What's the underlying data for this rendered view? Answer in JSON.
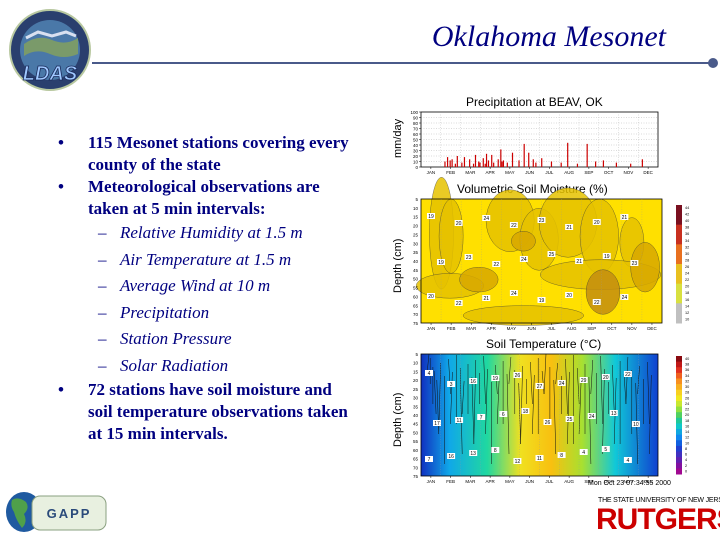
{
  "slide": {
    "title": "Oklahoma Mesonet",
    "ldas_logo_text": "LDAS",
    "gapp_logo_text": "GAPP",
    "rutgers_top_text": "THE STATE UNIVERSITY OF NEW JERSEY",
    "rutgers_word": "RUTGERS",
    "bullets": [
      {
        "text": "115 Mesonet stations covering every county of the state",
        "sub": []
      },
      {
        "text": "Meteorological observations are taken at 5 min intervals:",
        "sub": [
          "Relative Humidity at 1.5 m",
          "Air Temperature at 1.5 m",
          "Average Wind at 10 m",
          "Precipitation",
          "Station Pressure",
          "Solar Radiation"
        ]
      },
      {
        "text": "72 stations have soil moisture and soil temperature observations taken at 15 min intervals.",
        "sub": []
      }
    ]
  },
  "figure": {
    "months": [
      "JAN",
      "FEB",
      "MAR",
      "APR",
      "MAY",
      "JUN",
      "JUL",
      "AUG",
      "SEP",
      "OCT",
      "NOV",
      "DEC"
    ],
    "precip": {
      "title": "Precipitation at BEAV, OK",
      "ylabel": "mm/day",
      "yticks": [
        "100",
        "90",
        "80",
        "70",
        "60",
        "50",
        "40",
        "30",
        "20",
        "10",
        "0"
      ],
      "ylim": [
        0,
        100
      ],
      "days": [
        36,
        40,
        44,
        47,
        52,
        55,
        62,
        66,
        74,
        80,
        83,
        88,
        90,
        95,
        98,
        100,
        103,
        108,
        111,
        118,
        122,
        124,
        126,
        132,
        140,
        150,
        158,
        165,
        172,
        176,
        185,
        200,
        215,
        225,
        240,
        255,
        268,
        280,
        300,
        322,
        340
      ],
      "values": [
        10,
        18,
        12,
        14,
        6,
        20,
        8,
        18,
        14,
        6,
        22,
        10,
        8,
        16,
        6,
        24,
        12,
        22,
        8,
        14,
        32,
        10,
        12,
        8,
        26,
        12,
        42,
        26,
        14,
        8,
        16,
        10,
        8,
        44,
        6,
        42,
        10,
        12,
        8,
        6,
        14
      ]
    },
    "moisture": {
      "title": "Volumetric Soil Moisture (%)",
      "ylabel": "Depth (cm)",
      "yticks": [
        "5",
        "10",
        "15",
        "20",
        "25",
        "30",
        "35",
        "40",
        "45",
        "50",
        "55",
        "60",
        "65",
        "70",
        "75"
      ],
      "colorbar_ticks": [
        "44",
        "42",
        "40",
        "38",
        "36",
        "34",
        "32",
        "30",
        "28",
        "26",
        "24",
        "22",
        "20",
        "18",
        "16",
        "14",
        "12",
        "10"
      ],
      "colors": [
        "#ffe000",
        "#e6c200",
        "#d8a800",
        "#c48e10"
      ],
      "contour_labels": [
        "19",
        "20",
        "24",
        "22",
        "23",
        "21",
        "20",
        "21",
        "19",
        "23",
        "22",
        "24",
        "25",
        "21",
        "19",
        "23",
        "20",
        "22",
        "21",
        "24",
        "19",
        "20",
        "22",
        "24"
      ]
    },
    "temperature": {
      "title": "Soil Temperature (°C)",
      "ylabel": "Depth (cm)",
      "yticks": [
        "5",
        "10",
        "15",
        "20",
        "25",
        "30",
        "35",
        "40",
        "45",
        "50",
        "55",
        "60",
        "65",
        "70",
        "75"
      ],
      "colorbar_ticks": [
        "40",
        "38",
        "36",
        "34",
        "32",
        "30",
        "28",
        "26",
        "24",
        "22",
        "20",
        "18",
        "16",
        "14",
        "12",
        "10",
        "8",
        "6",
        "4",
        "2",
        "0"
      ],
      "contour_labels": [
        "4",
        "3",
        "16",
        "19",
        "26",
        "27",
        "24",
        "29",
        "20",
        "22",
        "17",
        "11",
        "7",
        "6",
        "18",
        "26",
        "25",
        "24",
        "13",
        "10",
        "7",
        "16",
        "13",
        "8",
        "12",
        "11",
        "8",
        "4",
        "5",
        "4"
      ],
      "footer_note": "Mon Oct 23 07:34:55 2000"
    }
  }
}
